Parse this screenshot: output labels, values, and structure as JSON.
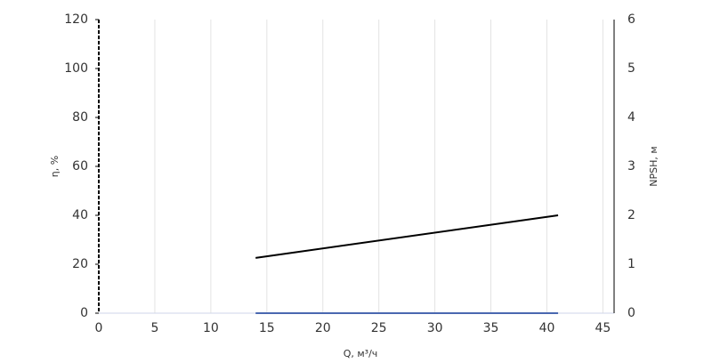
{
  "chart_data": {
    "type": "line",
    "x_label": "Q, м³/ч",
    "y_label": "η, %",
    "y2_label": "NPSH, м",
    "xlim": [
      0,
      46
    ],
    "xticks": [
      0,
      5,
      10,
      15,
      20,
      25,
      30,
      35,
      40,
      45
    ],
    "ylim": [
      0,
      120
    ],
    "yticks": [
      0,
      20,
      40,
      60,
      80,
      100,
      120
    ],
    "y2lim": [
      0,
      6
    ],
    "y2ticks": [
      0,
      1,
      2,
      3,
      4,
      5,
      6
    ],
    "grid": true,
    "series": [
      {
        "color": "#000000",
        "axis": "y2",
        "x": [
          14,
          41
        ],
        "values": [
          1.13,
          2.0
        ]
      },
      {
        "color": "#4a68b0",
        "x": [
          14,
          41
        ],
        "values": [
          0,
          0
        ]
      }
    ]
  }
}
